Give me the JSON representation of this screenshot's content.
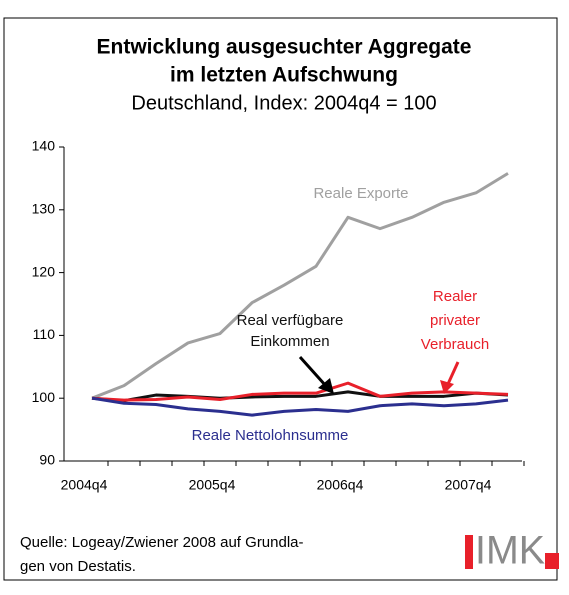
{
  "chart_data": {
    "type": "line",
    "title": [
      "Entwicklung ausgesuchter Aggregate",
      "im letzten Aufschwung"
    ],
    "subtitle": "Deutschland, Index: 2004q4 = 100",
    "categories": [
      "2004q4",
      null,
      null,
      null,
      "2005q4",
      null,
      null,
      null,
      "2006q4",
      null,
      null,
      null,
      "2007q4",
      null
    ],
    "ylim": [
      90,
      140
    ],
    "yticks": [
      90,
      100,
      110,
      120,
      130,
      140
    ],
    "series": [
      {
        "label_lines": [
          "Reale Exporte"
        ],
        "color": "#a0a0a0",
        "values": [
          100,
          102,
          105.5,
          108.8,
          110.3,
          115.2,
          118,
          121,
          128.8,
          127,
          128.8,
          131.2,
          132.7,
          135.8
        ]
      },
      {
        "label_lines": [
          "Real verfügbare",
          "Einkommen"
        ],
        "color": "#111111",
        "values": [
          100,
          99.6,
          100.5,
          100.3,
          100.0,
          100.2,
          100.3,
          100.3,
          101.0,
          100.3,
          100.3,
          100.3,
          100.8,
          100.5
        ]
      },
      {
        "label_lines": [
          "Realer",
          "privater",
          "Verbrauch"
        ],
        "color": "#e8202a",
        "values": [
          100,
          99.7,
          99.8,
          100.2,
          99.8,
          100.6,
          100.8,
          100.8,
          102.4,
          100.3,
          100.8,
          101.0,
          100.8,
          100.6
        ]
      },
      {
        "label_lines": [
          "Reale Nettolohnsumme"
        ],
        "color": "#2b2f8f",
        "values": [
          100,
          99.2,
          99.0,
          98.3,
          97.9,
          97.3,
          97.9,
          98.2,
          97.9,
          98.8,
          99.1,
          98.8,
          99.1,
          99.7
        ]
      }
    ],
    "source": [
      "Quelle: Logeay/Zwiener 2008 auf Grundla-",
      "gen von Destatis."
    ],
    "logo": "IMK"
  }
}
